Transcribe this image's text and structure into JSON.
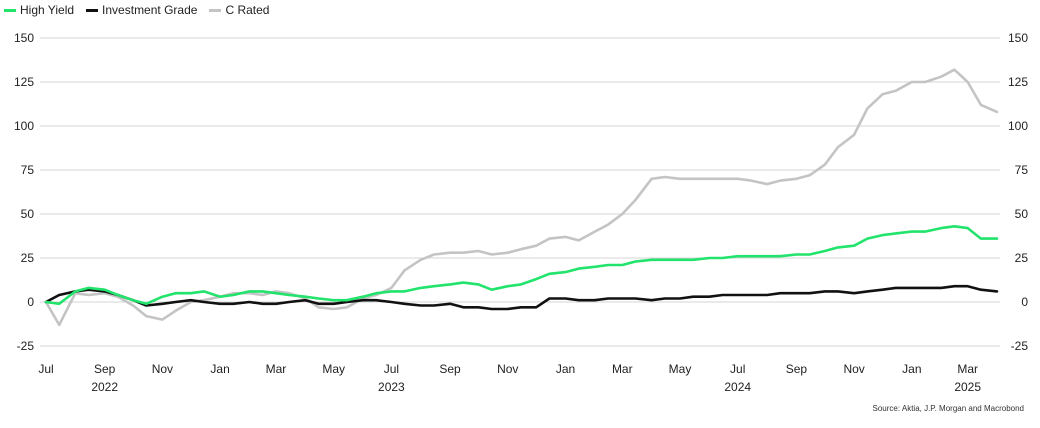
{
  "chart_data": {
    "type": "line",
    "title": "",
    "xlabel": "",
    "ylabel": "",
    "ylim": [
      -25,
      150
    ],
    "y_ticks": [
      -25,
      0,
      25,
      50,
      75,
      100,
      125,
      150
    ],
    "grid": true,
    "legend_position": "top-left",
    "x_tick_labels": [
      "Jul",
      "Sep",
      "Nov",
      "Jan",
      "Mar",
      "May",
      "Jul",
      "Sep",
      "Nov",
      "Jan",
      "Mar",
      "May",
      "Jul",
      "Sep",
      "Nov",
      "Jan",
      "Mar"
    ],
    "x_tick_dates": [
      "2022-07-01",
      "2022-09-01",
      "2022-11-01",
      "2023-01-01",
      "2023-03-01",
      "2023-05-01",
      "2023-07-01",
      "2023-09-01",
      "2023-11-01",
      "2024-01-01",
      "2024-03-01",
      "2024-05-01",
      "2024-07-01",
      "2024-09-01",
      "2024-11-01",
      "2025-01-01",
      "2025-03-01"
    ],
    "year_labels": [
      {
        "text": "2022",
        "date": "2022-09-01"
      },
      {
        "text": "2023",
        "date": "2023-07-01"
      },
      {
        "text": "2024",
        "date": "2024-07-01"
      },
      {
        "text": "2025",
        "date": "2025-03-01"
      }
    ],
    "x": [
      "2022-07-01",
      "2022-07-15",
      "2022-08-01",
      "2022-08-15",
      "2022-09-01",
      "2022-09-15",
      "2022-10-01",
      "2022-10-15",
      "2022-11-01",
      "2022-11-15",
      "2022-12-01",
      "2022-12-15",
      "2023-01-01",
      "2023-01-15",
      "2023-02-01",
      "2023-02-15",
      "2023-03-01",
      "2023-03-15",
      "2023-04-01",
      "2023-04-15",
      "2023-05-01",
      "2023-05-15",
      "2023-06-01",
      "2023-06-15",
      "2023-07-01",
      "2023-07-15",
      "2023-08-01",
      "2023-08-15",
      "2023-09-01",
      "2023-09-15",
      "2023-10-01",
      "2023-10-15",
      "2023-11-01",
      "2023-11-15",
      "2023-12-01",
      "2023-12-15",
      "2024-01-01",
      "2024-01-15",
      "2024-02-01",
      "2024-02-15",
      "2024-03-01",
      "2024-03-15",
      "2024-04-01",
      "2024-04-15",
      "2024-05-01",
      "2024-05-15",
      "2024-06-01",
      "2024-06-15",
      "2024-07-01",
      "2024-07-15",
      "2024-08-01",
      "2024-08-15",
      "2024-09-01",
      "2024-09-15",
      "2024-10-01",
      "2024-10-15",
      "2024-11-01",
      "2024-11-15",
      "2024-12-01",
      "2024-12-15",
      "2025-01-01",
      "2025-01-15",
      "2025-02-01",
      "2025-02-15",
      "2025-03-01",
      "2025-03-15",
      "2025-04-01"
    ],
    "series": [
      {
        "name": "High Yield",
        "color": "#22e36b",
        "values": [
          0,
          -1,
          6,
          8,
          7,
          4,
          1,
          -1,
          3,
          5,
          5,
          6,
          3,
          4,
          6,
          6,
          5,
          4,
          3,
          2,
          1,
          1,
          3,
          5,
          6,
          6,
          8,
          9,
          10,
          11,
          10,
          7,
          9,
          10,
          13,
          16,
          17,
          19,
          20,
          21,
          21,
          23,
          24,
          24,
          24,
          24,
          25,
          25,
          26,
          26,
          26,
          26,
          27,
          27,
          29,
          31,
          32,
          36,
          38,
          39,
          40,
          40,
          42,
          43,
          42,
          36,
          36
        ]
      },
      {
        "name": "Investment Grade",
        "color": "#111111",
        "values": [
          0,
          4,
          6,
          7,
          6,
          4,
          1,
          -2,
          -1,
          0,
          1,
          0,
          -1,
          -1,
          0,
          -1,
          -1,
          0,
          1,
          -1,
          -1,
          0,
          1,
          1,
          0,
          -1,
          -2,
          -2,
          -1,
          -3,
          -3,
          -4,
          -4,
          -3,
          -3,
          2,
          2,
          1,
          1,
          2,
          2,
          2,
          1,
          2,
          2,
          3,
          3,
          4,
          4,
          4,
          4,
          5,
          5,
          5,
          6,
          6,
          5,
          6,
          7,
          8,
          8,
          8,
          8,
          9,
          9,
          7,
          6
        ]
      },
      {
        "name": "C Rated",
        "color": "#c4c4c4",
        "values": [
          0,
          -13,
          5,
          4,
          5,
          3,
          -2,
          -8,
          -10,
          -5,
          0,
          1,
          3,
          5,
          5,
          4,
          6,
          5,
          2,
          -3,
          -4,
          -3,
          2,
          4,
          8,
          18,
          24,
          27,
          28,
          28,
          29,
          27,
          28,
          30,
          32,
          36,
          37,
          35,
          40,
          44,
          50,
          58,
          70,
          71,
          70,
          70,
          70,
          70,
          70,
          69,
          67,
          69,
          70,
          72,
          78,
          88,
          95,
          110,
          118,
          120,
          125,
          125,
          128,
          132,
          125,
          112,
          108
        ]
      }
    ]
  },
  "source_text": "Source: Aktia, J.P. Morgan and Macrobond"
}
